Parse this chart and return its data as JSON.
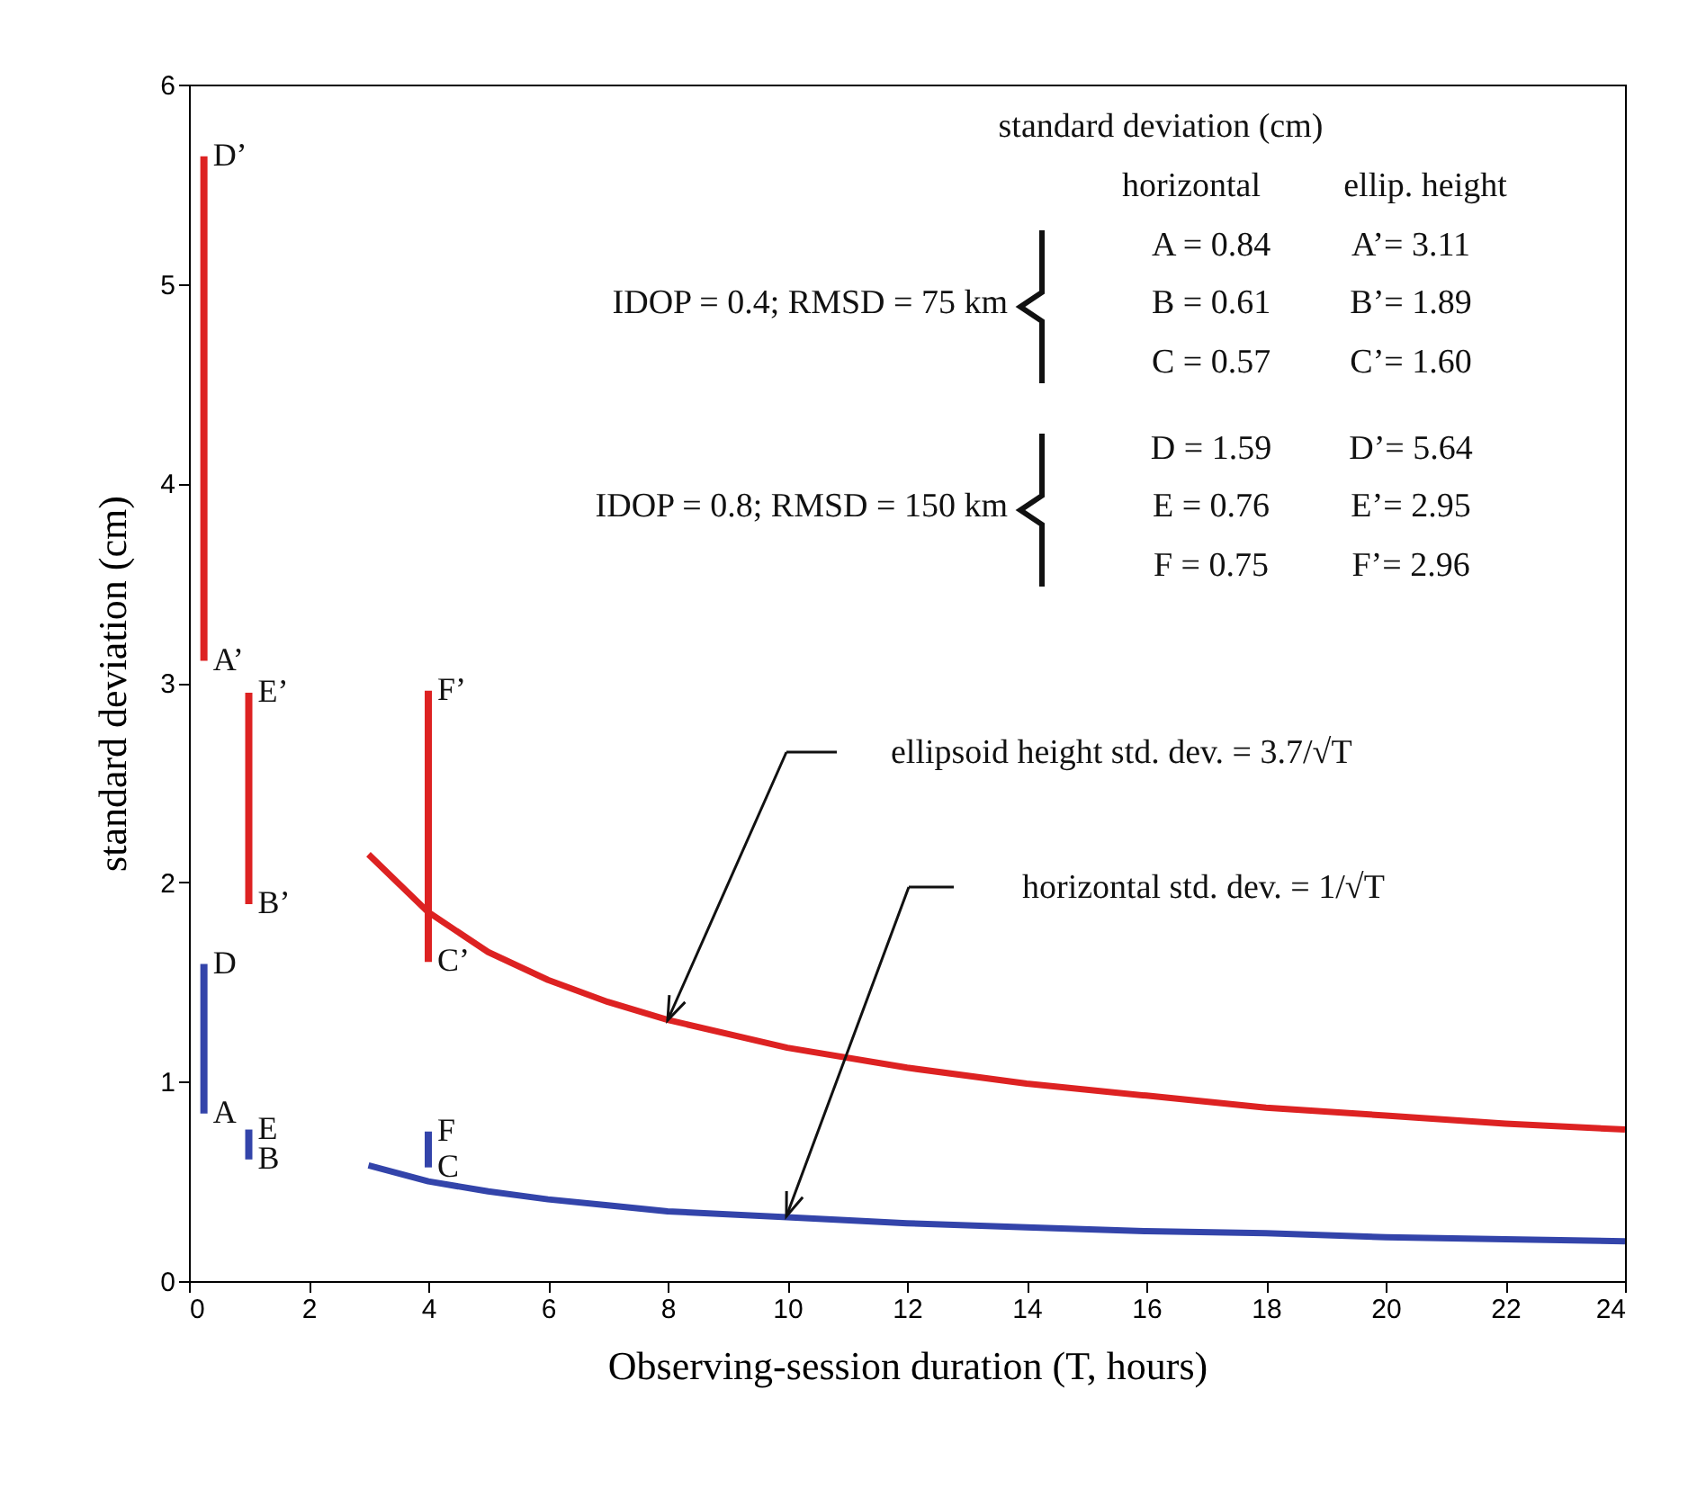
{
  "chart_data": {
    "type": "line",
    "xlabel": "Observing-session duration (T, hours)",
    "ylabel": "standard deviation (cm)",
    "xlim": [
      0,
      24
    ],
    "ylim": [
      0,
      6
    ],
    "xticks": [
      0,
      2,
      4,
      6,
      8,
      10,
      12,
      14,
      16,
      18,
      20,
      22,
      24
    ],
    "yticks": [
      0,
      1,
      2,
      3,
      4,
      5,
      6
    ],
    "series": [
      {
        "color": "#dd2222",
        "x": [
          0.25,
          0.25
        ],
        "values": [
          3.11,
          5.64
        ]
      },
      {
        "color": "#dd2222",
        "x": [
          1,
          1
        ],
        "values": [
          1.89,
          2.95
        ]
      },
      {
        "color": "#dd2222",
        "x": [
          4,
          4
        ],
        "values": [
          1.6,
          2.96
        ]
      },
      {
        "color": "#3344aa",
        "x": [
          0.25,
          0.25
        ],
        "values": [
          0.84,
          1.59
        ]
      },
      {
        "color": "#3344aa",
        "x": [
          1,
          1
        ],
        "values": [
          0.61,
          0.76
        ]
      },
      {
        "color": "#3344aa",
        "x": [
          4,
          4
        ],
        "values": [
          0.57,
          0.75
        ]
      },
      {
        "color": "#dd2222",
        "x": [
          3,
          4,
          5,
          6,
          7,
          8,
          10,
          12,
          14,
          16,
          18,
          20,
          22,
          24
        ],
        "values": [
          2.14,
          1.85,
          1.65,
          1.51,
          1.4,
          1.31,
          1.17,
          1.07,
          0.99,
          0.93,
          0.87,
          0.83,
          0.79,
          0.76
        ]
      },
      {
        "color": "#3344aa",
        "x": [
          3,
          4,
          5,
          6,
          7,
          8,
          10,
          12,
          14,
          16,
          18,
          20,
          22,
          24
        ],
        "values": [
          0.58,
          0.5,
          0.45,
          0.41,
          0.38,
          0.35,
          0.32,
          0.29,
          0.27,
          0.25,
          0.24,
          0.22,
          0.21,
          0.2
        ]
      }
    ],
    "annotations": [
      "standard deviation (cm)",
      "horizontal",
      "ellip. height",
      "IDOP = 0.4;  RMSD =  75 km",
      "A = 0.84",
      "A’= 3.11",
      "B = 0.61",
      "B’= 1.89",
      "C = 0.57",
      "C’= 1.60",
      "IDOP = 0.8;  RMSD = 150 km",
      "D = 1.59",
      "D’= 5.64",
      "E = 0.76",
      "E’= 2.95",
      "F = 0.75",
      "F’= 2.96",
      {
        "text": "D’",
        "x": 0.25,
        "y": 5.64
      },
      {
        "text": "A’",
        "x": 0.25,
        "y": 3.11
      },
      {
        "text": "E’",
        "x": 1,
        "y": 2.95
      },
      {
        "text": "B’",
        "x": 1,
        "y": 1.89
      },
      {
        "text": "F’",
        "x": 4,
        "y": 2.96
      },
      {
        "text": "C’",
        "x": 4,
        "y": 1.6
      },
      {
        "text": "D",
        "x": 0.25,
        "y": 1.59
      },
      {
        "text": "A",
        "x": 0.25,
        "y": 0.84
      },
      {
        "text": "E",
        "x": 1,
        "y": 0.76
      },
      {
        "text": "B",
        "x": 1,
        "y": 0.61
      },
      {
        "text": "F",
        "x": 4,
        "y": 0.75
      },
      {
        "text": "C",
        "x": 4,
        "y": 0.57
      },
      "ellipsoid height  std. dev. = 3.7/√T",
      "horizontal std. dev. = 1/√T"
    ]
  }
}
